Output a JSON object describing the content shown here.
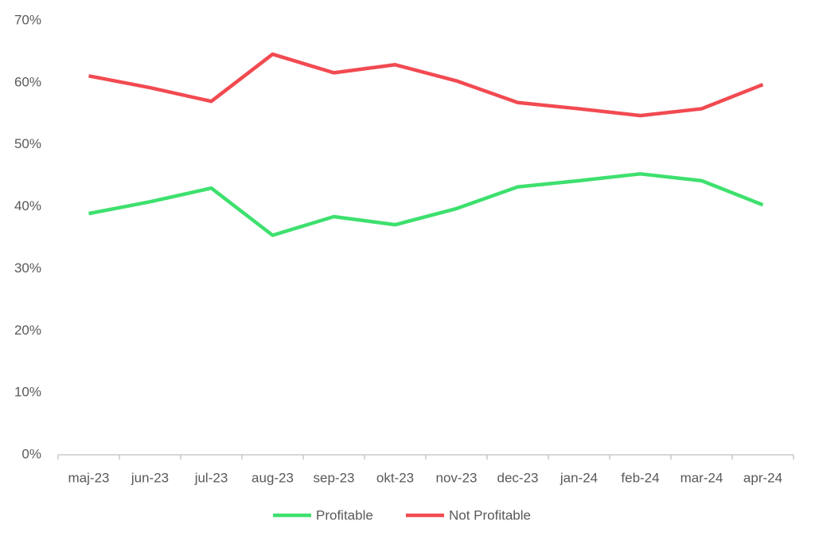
{
  "chart_data": {
    "type": "line",
    "categories": [
      "maj-23",
      "jun-23",
      "jul-23",
      "aug-23",
      "sep-23",
      "okt-23",
      "nov-23",
      "dec-23",
      "jan-24",
      "feb-24",
      "mar-24",
      "apr-24"
    ],
    "series": [
      {
        "name": "Profitable",
        "color": "#3ee06e",
        "values": [
          38.9,
          40.8,
          43.0,
          35.4,
          38.4,
          37.1,
          39.7,
          43.2,
          44.2,
          45.3,
          44.2,
          40.3
        ]
      },
      {
        "name": "Not Profitable",
        "color": "#f24a51",
        "values": [
          61.1,
          59.2,
          57.0,
          64.6,
          61.6,
          62.9,
          60.3,
          56.8,
          55.8,
          54.7,
          55.8,
          59.7
        ]
      }
    ],
    "ylim": [
      0,
      70
    ],
    "yticks": [
      {
        "value": 0,
        "label": "0%"
      },
      {
        "value": 10,
        "label": "10%"
      },
      {
        "value": 20,
        "label": "20%"
      },
      {
        "value": 30,
        "label": "30%"
      },
      {
        "value": 40,
        "label": "40%"
      },
      {
        "value": 50,
        "label": "50%"
      },
      {
        "value": 60,
        "label": "60%"
      },
      {
        "value": 70,
        "label": "70%"
      }
    ],
    "grid": false,
    "legend": "bottom"
  }
}
